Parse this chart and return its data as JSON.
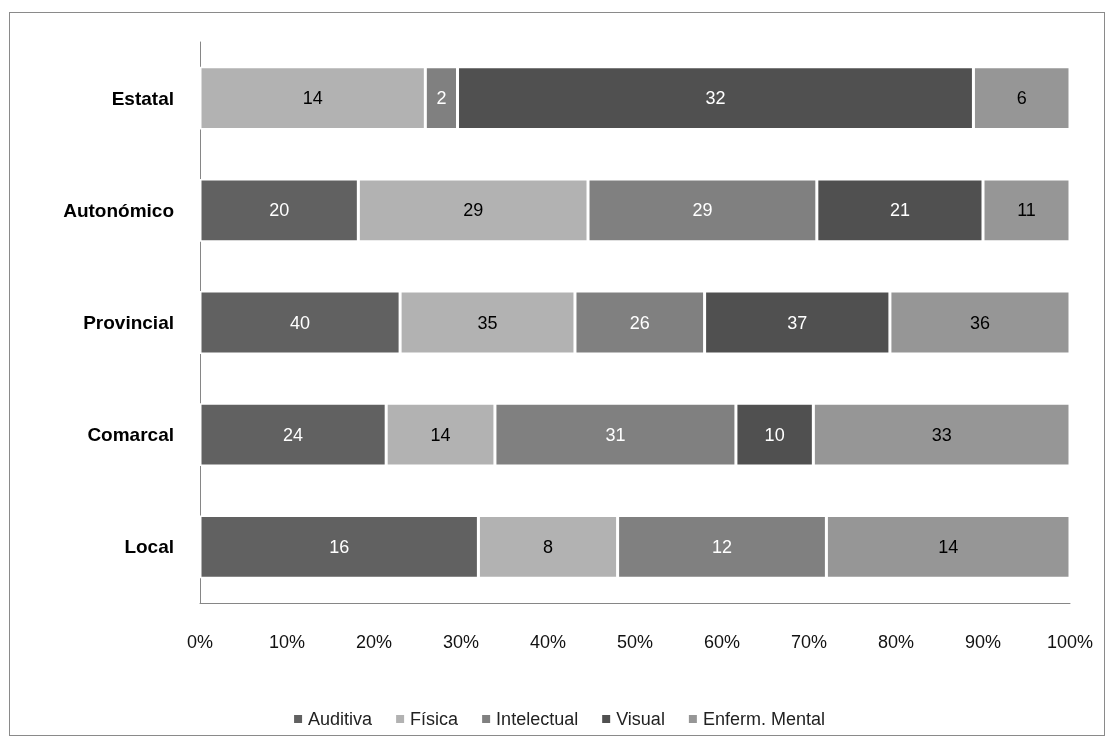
{
  "chart_data": {
    "type": "bar",
    "orientation": "horizontal",
    "stacked": true,
    "categories": [
      "Estatal",
      "Autonómico",
      "Provincial",
      "Comarcal",
      "Local"
    ],
    "series": [
      {
        "name": "Auditiva",
        "color": "#616161",
        "values": [
          null,
          18.2,
          23.0,
          21.4,
          32.0
        ]
      },
      {
        "name": "Física",
        "color": "#b2b2b2",
        "values": [
          25.9,
          26.4,
          20.1,
          12.5,
          16.0
        ]
      },
      {
        "name": "Intelectual",
        "color": "#808080",
        "values": [
          3.7,
          26.3,
          14.9,
          27.7,
          24.0
        ]
      },
      {
        "name": "Visual",
        "color": "#505050",
        "values": [
          59.3,
          19.1,
          21.3,
          8.9,
          null
        ]
      },
      {
        "name": "Enferm. Mental",
        "color": "#969696",
        "values": [
          11.1,
          10.0,
          20.7,
          29.5,
          28.0
        ]
      }
    ],
    "annotations": [
      "14",
      "2",
      "32",
      "6",
      "20",
      "29",
      "29",
      "21",
      "11",
      "40",
      "35",
      "26",
      "37",
      "36",
      "24",
      "14",
      "31",
      "10",
      "33",
      "16",
      "8",
      "12",
      "14"
    ],
    "xlim": [
      0,
      100
    ],
    "xticks": [
      {
        "value": 0,
        "label": "0%"
      },
      {
        "value": 10,
        "label": "10%"
      },
      {
        "value": 20,
        "label": "20%"
      },
      {
        "value": 30,
        "label": "30%"
      },
      {
        "value": 40,
        "label": "40%"
      },
      {
        "value": 50,
        "label": "50%"
      },
      {
        "value": 60,
        "label": "60%"
      },
      {
        "value": 70,
        "label": "70%"
      },
      {
        "value": 80,
        "label": "80%"
      },
      {
        "value": 90,
        "label": "90%"
      },
      {
        "value": 100,
        "label": "100%"
      }
    ],
    "grid": false,
    "legend": "bottom"
  }
}
